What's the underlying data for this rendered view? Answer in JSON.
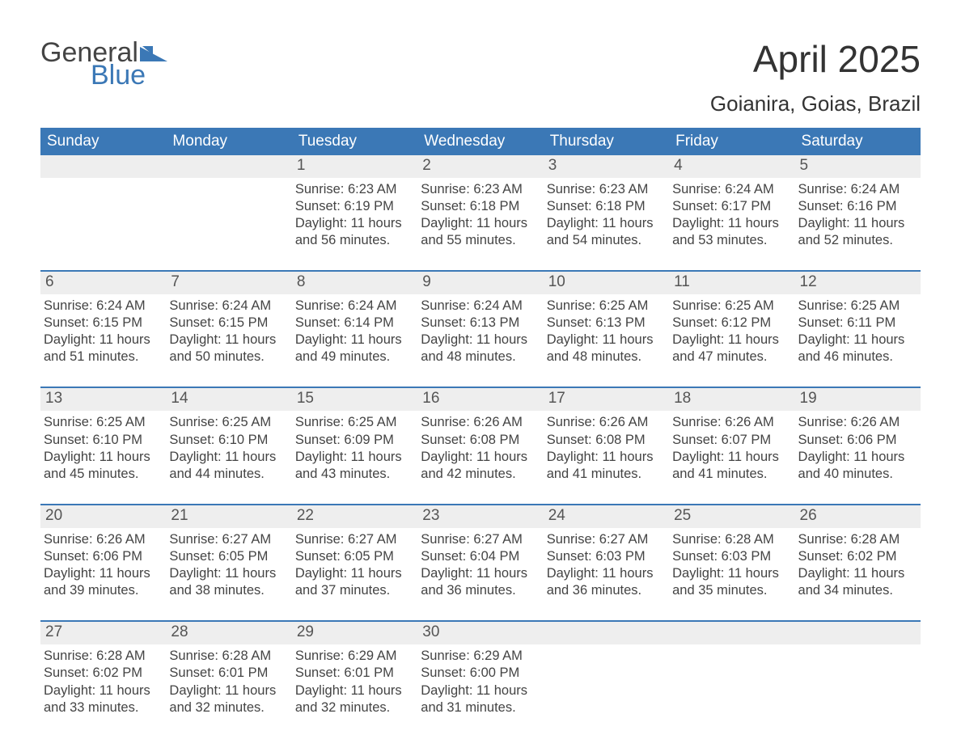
{
  "brand": {
    "word1": "General",
    "word2": "Blue",
    "word1_color": "#444444",
    "word2_color": "#3b78b6",
    "mark_color": "#3b78b6"
  },
  "title": "April 2025",
  "subtitle": "Goianira, Goias, Brazil",
  "colors": {
    "header_bg": "#3b78b6",
    "header_text": "#ffffff",
    "daynum_bg": "#eeeeee",
    "daynum_text": "#555555",
    "body_text": "#444444",
    "week_border": "#3b78b6",
    "page_bg": "#ffffff"
  },
  "fonts": {
    "title_size": 46,
    "subtitle_size": 26,
    "weekday_size": 19,
    "daynum_size": 19,
    "body_size": 16.5,
    "family": "Arial"
  },
  "weekdays": [
    "Sunday",
    "Monday",
    "Tuesday",
    "Wednesday",
    "Thursday",
    "Friday",
    "Saturday"
  ],
  "weeks": [
    [
      {
        "n": "",
        "lines": []
      },
      {
        "n": "",
        "lines": []
      },
      {
        "n": "1",
        "lines": [
          "Sunrise: 6:23 AM",
          "Sunset: 6:19 PM",
          "Daylight: 11 hours and 56 minutes."
        ]
      },
      {
        "n": "2",
        "lines": [
          "Sunrise: 6:23 AM",
          "Sunset: 6:18 PM",
          "Daylight: 11 hours and 55 minutes."
        ]
      },
      {
        "n": "3",
        "lines": [
          "Sunrise: 6:23 AM",
          "Sunset: 6:18 PM",
          "Daylight: 11 hours and 54 minutes."
        ]
      },
      {
        "n": "4",
        "lines": [
          "Sunrise: 6:24 AM",
          "Sunset: 6:17 PM",
          "Daylight: 11 hours and 53 minutes."
        ]
      },
      {
        "n": "5",
        "lines": [
          "Sunrise: 6:24 AM",
          "Sunset: 6:16 PM",
          "Daylight: 11 hours and 52 minutes."
        ]
      }
    ],
    [
      {
        "n": "6",
        "lines": [
          "Sunrise: 6:24 AM",
          "Sunset: 6:15 PM",
          "Daylight: 11 hours and 51 minutes."
        ]
      },
      {
        "n": "7",
        "lines": [
          "Sunrise: 6:24 AM",
          "Sunset: 6:15 PM",
          "Daylight: 11 hours and 50 minutes."
        ]
      },
      {
        "n": "8",
        "lines": [
          "Sunrise: 6:24 AM",
          "Sunset: 6:14 PM",
          "Daylight: 11 hours and 49 minutes."
        ]
      },
      {
        "n": "9",
        "lines": [
          "Sunrise: 6:24 AM",
          "Sunset: 6:13 PM",
          "Daylight: 11 hours and 48 minutes."
        ]
      },
      {
        "n": "10",
        "lines": [
          "Sunrise: 6:25 AM",
          "Sunset: 6:13 PM",
          "Daylight: 11 hours and 48 minutes."
        ]
      },
      {
        "n": "11",
        "lines": [
          "Sunrise: 6:25 AM",
          "Sunset: 6:12 PM",
          "Daylight: 11 hours and 47 minutes."
        ]
      },
      {
        "n": "12",
        "lines": [
          "Sunrise: 6:25 AM",
          "Sunset: 6:11 PM",
          "Daylight: 11 hours and 46 minutes."
        ]
      }
    ],
    [
      {
        "n": "13",
        "lines": [
          "Sunrise: 6:25 AM",
          "Sunset: 6:10 PM",
          "Daylight: 11 hours and 45 minutes."
        ]
      },
      {
        "n": "14",
        "lines": [
          "Sunrise: 6:25 AM",
          "Sunset: 6:10 PM",
          "Daylight: 11 hours and 44 minutes."
        ]
      },
      {
        "n": "15",
        "lines": [
          "Sunrise: 6:25 AM",
          "Sunset: 6:09 PM",
          "Daylight: 11 hours and 43 minutes."
        ]
      },
      {
        "n": "16",
        "lines": [
          "Sunrise: 6:26 AM",
          "Sunset: 6:08 PM",
          "Daylight: 11 hours and 42 minutes."
        ]
      },
      {
        "n": "17",
        "lines": [
          "Sunrise: 6:26 AM",
          "Sunset: 6:08 PM",
          "Daylight: 11 hours and 41 minutes."
        ]
      },
      {
        "n": "18",
        "lines": [
          "Sunrise: 6:26 AM",
          "Sunset: 6:07 PM",
          "Daylight: 11 hours and 41 minutes."
        ]
      },
      {
        "n": "19",
        "lines": [
          "Sunrise: 6:26 AM",
          "Sunset: 6:06 PM",
          "Daylight: 11 hours and 40 minutes."
        ]
      }
    ],
    [
      {
        "n": "20",
        "lines": [
          "Sunrise: 6:26 AM",
          "Sunset: 6:06 PM",
          "Daylight: 11 hours and 39 minutes."
        ]
      },
      {
        "n": "21",
        "lines": [
          "Sunrise: 6:27 AM",
          "Sunset: 6:05 PM",
          "Daylight: 11 hours and 38 minutes."
        ]
      },
      {
        "n": "22",
        "lines": [
          "Sunrise: 6:27 AM",
          "Sunset: 6:05 PM",
          "Daylight: 11 hours and 37 minutes."
        ]
      },
      {
        "n": "23",
        "lines": [
          "Sunrise: 6:27 AM",
          "Sunset: 6:04 PM",
          "Daylight: 11 hours and 36 minutes."
        ]
      },
      {
        "n": "24",
        "lines": [
          "Sunrise: 6:27 AM",
          "Sunset: 6:03 PM",
          "Daylight: 11 hours and 36 minutes."
        ]
      },
      {
        "n": "25",
        "lines": [
          "Sunrise: 6:28 AM",
          "Sunset: 6:03 PM",
          "Daylight: 11 hours and 35 minutes."
        ]
      },
      {
        "n": "26",
        "lines": [
          "Sunrise: 6:28 AM",
          "Sunset: 6:02 PM",
          "Daylight: 11 hours and 34 minutes."
        ]
      }
    ],
    [
      {
        "n": "27",
        "lines": [
          "Sunrise: 6:28 AM",
          "Sunset: 6:02 PM",
          "Daylight: 11 hours and 33 minutes."
        ]
      },
      {
        "n": "28",
        "lines": [
          "Sunrise: 6:28 AM",
          "Sunset: 6:01 PM",
          "Daylight: 11 hours and 32 minutes."
        ]
      },
      {
        "n": "29",
        "lines": [
          "Sunrise: 6:29 AM",
          "Sunset: 6:01 PM",
          "Daylight: 11 hours and 32 minutes."
        ]
      },
      {
        "n": "30",
        "lines": [
          "Sunrise: 6:29 AM",
          "Sunset: 6:00 PM",
          "Daylight: 11 hours and 31 minutes."
        ]
      },
      {
        "n": "",
        "lines": []
      },
      {
        "n": "",
        "lines": []
      },
      {
        "n": "",
        "lines": []
      }
    ]
  ]
}
